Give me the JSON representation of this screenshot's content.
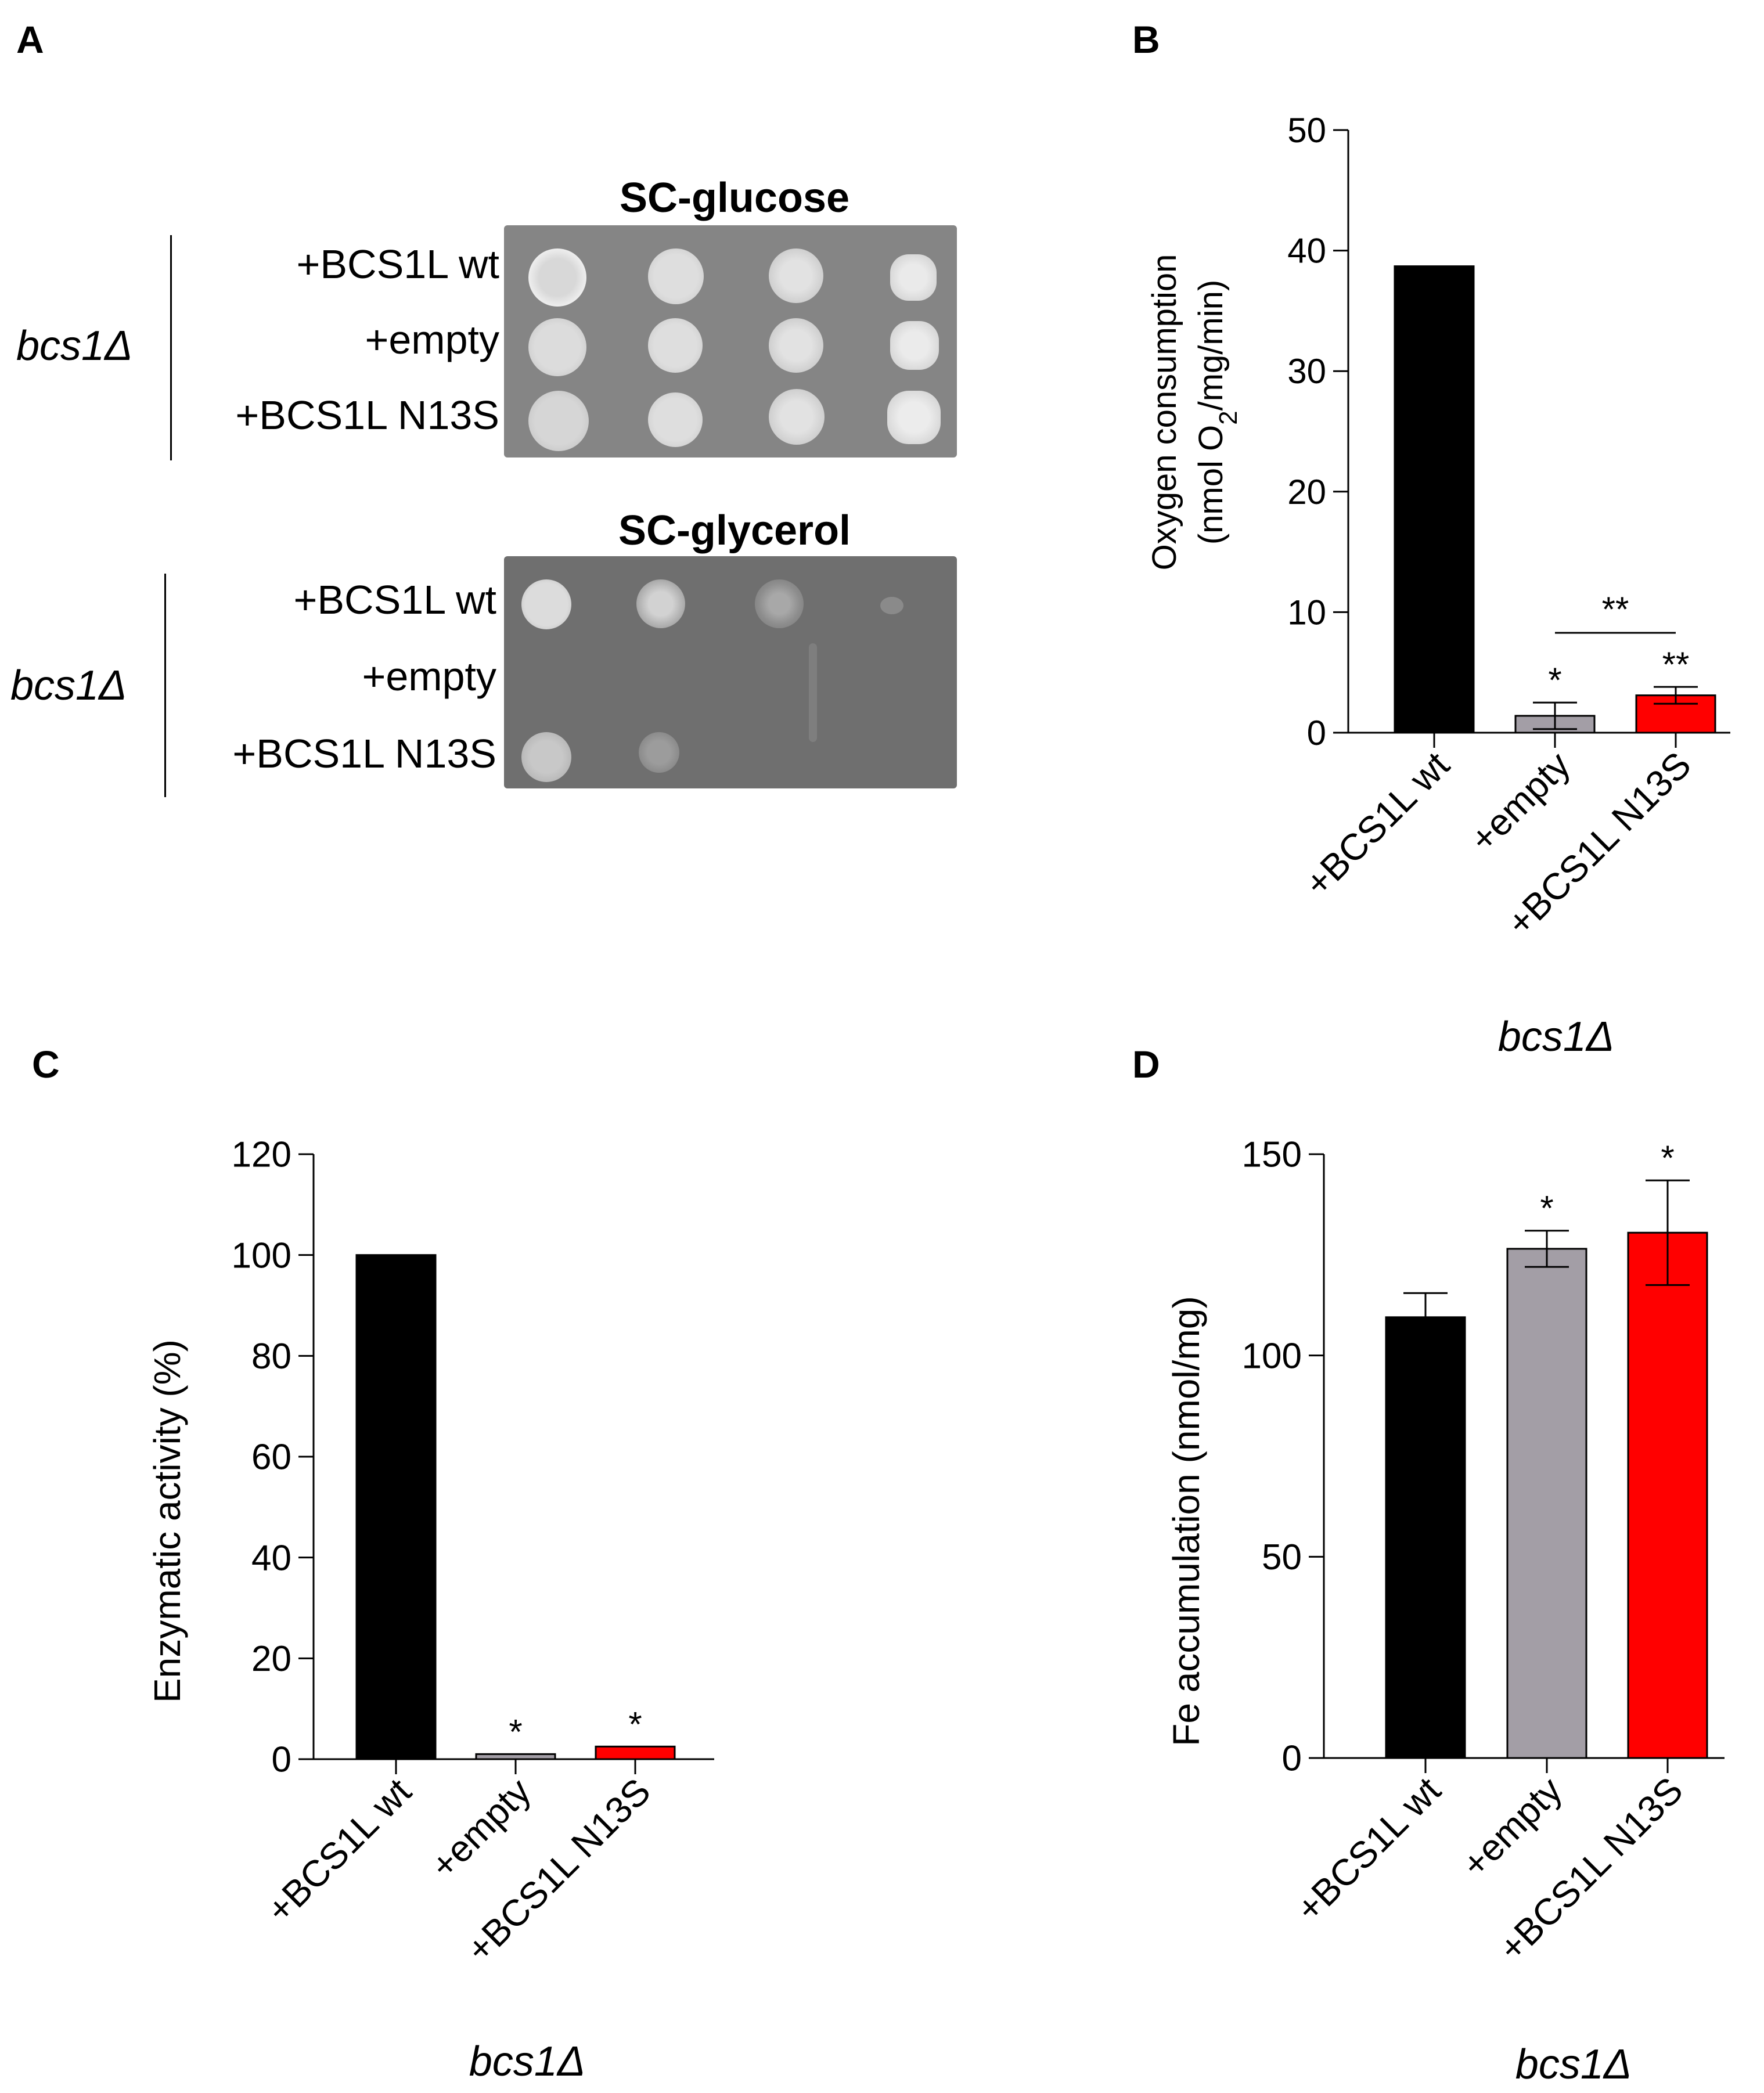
{
  "panels": {
    "a": {
      "letter": "A",
      "strain": "bcs1Δ",
      "row_labels": [
        "+BCS1L wt",
        "+empty",
        "+BCS1L N13S"
      ],
      "glucose_title": "SC-glucose",
      "glycerol_title": "SC-glycerol"
    },
    "b": {
      "letter": "B"
    },
    "c": {
      "letter": "C"
    },
    "d": {
      "letter": "D"
    }
  },
  "colors": {
    "wt": "#000000",
    "empty": "#a39ea6",
    "n13s": "#ff0000",
    "plate": "#858585"
  },
  "chart_data": [
    {
      "id": "b",
      "type": "bar",
      "categories": [
        "+BCS1L wt",
        "+empty",
        "+BCS1L N13S"
      ],
      "values": [
        38.7,
        1.4,
        3.1
      ],
      "errors": [
        0,
        1.1,
        0.7
      ],
      "significance": [
        "",
        "*",
        "**"
      ],
      "bracket": {
        "from": 1,
        "to": 2,
        "label": "**"
      },
      "ylabel_line1": "Oxygen consumption",
      "ylabel_line2": "(nmol O2/mg/min)",
      "ylim": [
        0,
        50
      ],
      "yticks": [
        0,
        10,
        20,
        30,
        40,
        50
      ],
      "xlabel": "bcs1Δ"
    },
    {
      "id": "c",
      "type": "bar",
      "categories": [
        "+BCS1L wt",
        "+empty",
        "+BCS1L N13S"
      ],
      "values": [
        100,
        1,
        2.5
      ],
      "errors": [
        0,
        0,
        0
      ],
      "significance": [
        "",
        "*",
        "*"
      ],
      "ylabel": "Enzymatic activity (%)",
      "ylim": [
        0,
        120
      ],
      "yticks": [
        0,
        20,
        40,
        60,
        80,
        100,
        120
      ],
      "xlabel": "bcs1Δ"
    },
    {
      "id": "d",
      "type": "bar",
      "categories": [
        "+BCS1L wt",
        "+empty",
        "+BCS1L N13S"
      ],
      "values": [
        109.5,
        126.5,
        130.5
      ],
      "errors": [
        6,
        4.5,
        13
      ],
      "significance": [
        "",
        "*",
        "*"
      ],
      "ylabel": "Fe accumulation (nmol/mg)",
      "ylim": [
        0,
        150
      ],
      "yticks": [
        0,
        50,
        100,
        150
      ],
      "xlabel": "bcs1Δ"
    }
  ]
}
